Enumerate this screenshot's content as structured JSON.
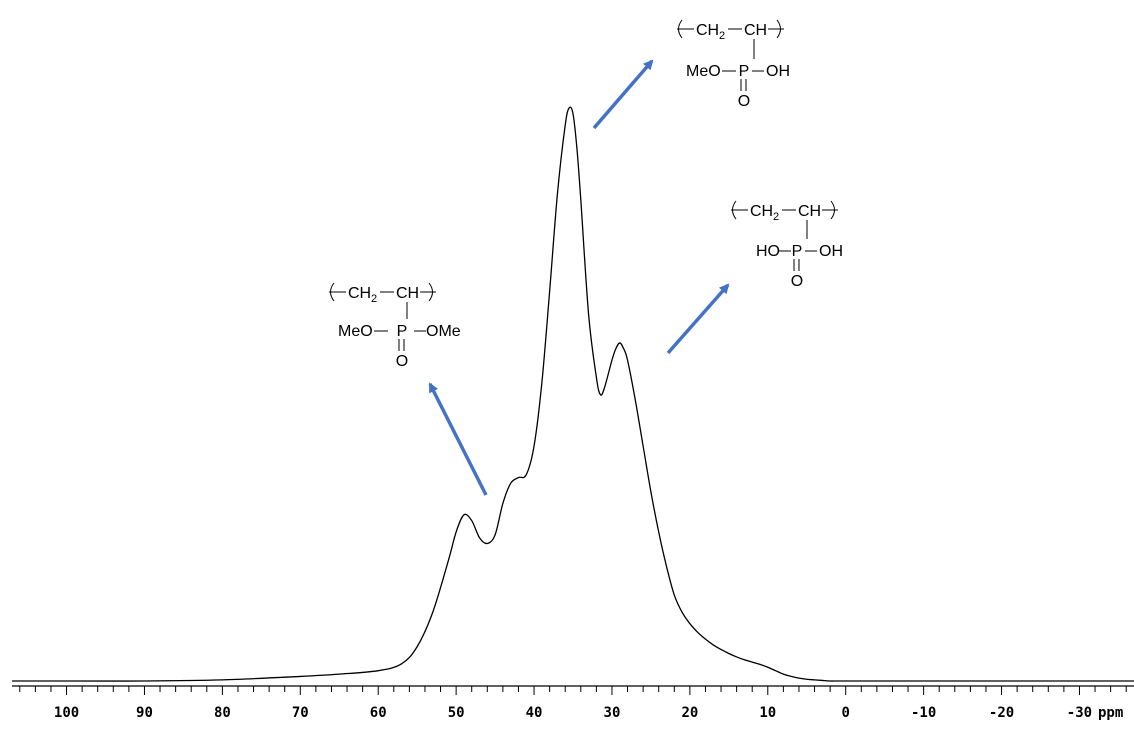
{
  "chart_data": {
    "type": "line",
    "xlabel": "ppm",
    "x_reversed": true,
    "xlim": [
      107,
      -37
    ],
    "x_ticks": [
      100,
      90,
      80,
      70,
      60,
      50,
      40,
      30,
      20,
      10,
      0,
      -10,
      -20,
      -30
    ],
    "x_tick_labels": [
      "100",
      "90",
      "80",
      "70",
      "60",
      "50",
      "40",
      "30",
      "20",
      "10",
      "0",
      "-10",
      "-20",
      "-30"
    ],
    "y_ticks_shown": false,
    "grid": false,
    "series": [
      {
        "color": "#000000",
        "x": [
          107,
          100,
          90,
          80,
          70,
          65,
          60,
          57,
          55,
          53,
          51,
          50,
          49,
          48,
          47,
          46,
          45,
          44,
          43,
          42,
          41,
          40,
          39,
          38,
          37,
          36,
          35.5,
          35,
          34.5,
          34,
          33,
          32,
          31.5,
          31,
          30,
          29.5,
          29,
          28.5,
          28,
          27,
          26,
          25,
          24,
          23,
          22,
          21,
          20,
          19,
          18,
          17,
          16,
          15,
          14,
          13,
          12,
          11,
          10,
          9,
          8,
          7,
          6,
          5,
          4,
          3,
          2,
          0,
          -10,
          -20,
          -30,
          -37
        ],
        "y": [
          0.0,
          0.0,
          0.0,
          0.002,
          0.008,
          0.012,
          0.018,
          0.03,
          0.06,
          0.12,
          0.21,
          0.26,
          0.29,
          0.28,
          0.25,
          0.24,
          0.255,
          0.31,
          0.345,
          0.355,
          0.36,
          0.41,
          0.52,
          0.68,
          0.85,
          0.97,
          1.0,
          0.99,
          0.93,
          0.84,
          0.64,
          0.53,
          0.5,
          0.51,
          0.56,
          0.58,
          0.59,
          0.58,
          0.56,
          0.49,
          0.41,
          0.33,
          0.26,
          0.2,
          0.15,
          0.12,
          0.1,
          0.085,
          0.073,
          0.063,
          0.055,
          0.048,
          0.042,
          0.037,
          0.033,
          0.029,
          0.024,
          0.018,
          0.012,
          0.008,
          0.005,
          0.003,
          0.002,
          0.001,
          0.0,
          0.0,
          0.0,
          0.0,
          0.0,
          0.0
        ]
      }
    ],
    "annotations": [
      {
        "name": "dimethyl phosphonate unit",
        "arrow_color": "#4472c4",
        "backbone": [
          "CH",
          "2",
          "CH"
        ],
        "substituents": [
          "MeO",
          "P",
          "OMe"
        ],
        "oxo": "O"
      },
      {
        "name": "monomethyl phosphonate unit",
        "arrow_color": "#4472c4",
        "backbone": [
          "CH",
          "2",
          "CH"
        ],
        "substituents": [
          "MeO",
          "P",
          "OH"
        ],
        "oxo": "O"
      },
      {
        "name": "phosphonic acid unit",
        "arrow_color": "#4472c4",
        "backbone": [
          "CH",
          "2",
          "CH"
        ],
        "substituents": [
          "HO",
          "P",
          "OH"
        ],
        "oxo": "O"
      }
    ]
  }
}
